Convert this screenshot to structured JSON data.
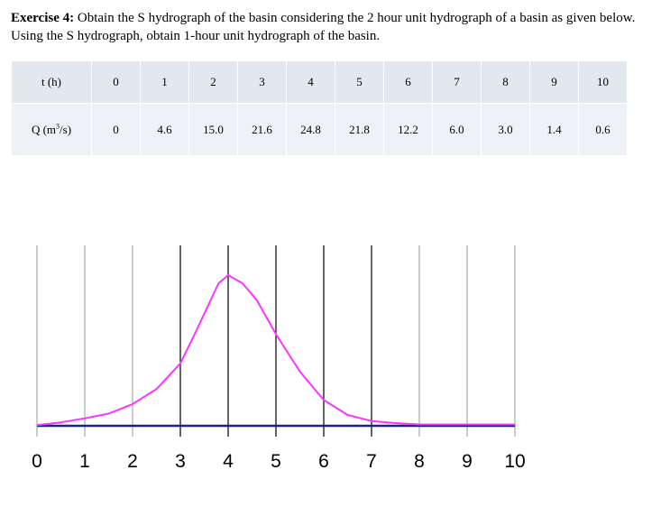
{
  "exercise": {
    "label": "Exercise 4:",
    "text": "Obtain the S hydrograph of the basin considering the 2 hour unit hydrograph of a basin as given below. Using the S hydrograph, obtain 1-hour unit hydrograph of the basin."
  },
  "table": {
    "t_label": "t (h)",
    "q_label": {
      "prefix": "Q (m",
      "sup": "3",
      "suffix": "/s)"
    },
    "t": [
      "0",
      "1",
      "2",
      "3",
      "4",
      "5",
      "6",
      "7",
      "8",
      "9",
      "10"
    ],
    "q": [
      "0",
      "4.6",
      "15.0",
      "21.6",
      "24.8",
      "21.8",
      "12.2",
      "6.0",
      "3.0",
      "1.4",
      "0.6"
    ]
  },
  "chart_data": {
    "type": "line",
    "x": [
      0,
      1,
      2,
      3,
      4,
      5,
      6,
      7,
      8,
      9,
      10
    ],
    "tick_labels": [
      "0",
      "1",
      "2",
      "3",
      "4",
      "5",
      "6",
      "7",
      "8",
      "9",
      "10"
    ],
    "series": [
      {
        "color": "#ff33ff",
        "x": [
          0,
          0.5,
          1,
          1.5,
          2,
          2.5,
          3,
          3.3,
          3.6,
          3.8,
          4,
          4.3,
          4.6,
          5,
          5.5,
          6,
          6.5,
          7,
          7.5,
          8,
          9,
          10
        ],
        "y": [
          0.1,
          0.5,
          1.1,
          1.8,
          3.2,
          5.4,
          9.2,
          13.5,
          18.0,
          21.0,
          22.2,
          21.0,
          18.5,
          13.5,
          8.0,
          3.8,
          1.6,
          0.7,
          0.4,
          0.2,
          0.2,
          0.2
        ]
      },
      {
        "color": "#1a237e",
        "x": [
          0,
          10
        ],
        "y": [
          0,
          0
        ]
      }
    ],
    "vertical_gridlines": [
      {
        "x": 0,
        "color": "#999999",
        "dark": false
      },
      {
        "x": 1,
        "color": "#999999",
        "dark": false
      },
      {
        "x": 2,
        "color": "#999999",
        "dark": false
      },
      {
        "x": 3,
        "color": "#000000",
        "dark": true
      },
      {
        "x": 4,
        "color": "#000000",
        "dark": true
      },
      {
        "x": 5,
        "color": "#000000",
        "dark": true
      },
      {
        "x": 6,
        "color": "#000000",
        "dark": true
      },
      {
        "x": 7,
        "color": "#000000",
        "dark": true
      },
      {
        "x": 8,
        "color": "#999999",
        "dark": false
      },
      {
        "x": 9,
        "color": "#999999",
        "dark": false
      },
      {
        "x": 10,
        "color": "#999999",
        "dark": false
      }
    ],
    "xlim": [
      0,
      10
    ],
    "ylim": [
      0,
      28
    ]
  }
}
